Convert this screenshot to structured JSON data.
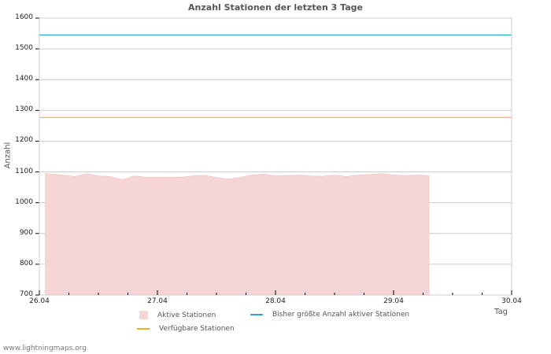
{
  "title": "Anzahl Stationen der letzten 3 Tage",
  "ylabel": "Anzahl",
  "xlabel": "Tag",
  "footer": "www.lightningmaps.org",
  "colors": {
    "active_fill": "#f5d5d5",
    "active_edge": "#f0c0c0",
    "max_line": "#2aaac8",
    "available_line": "#f0b020",
    "grid": "#cccccc",
    "axis": "#cccccc"
  },
  "legend": {
    "active": "Aktive Stationen",
    "max": "Bisher größte Anzahl aktiver Stationen",
    "available": "Verfügbare Stationen"
  },
  "yticks": [
    "1600",
    "1500",
    "1400",
    "1300",
    "1200",
    "1100",
    "1000",
    "900",
    "800",
    "700"
  ],
  "xticks": [
    "26.04",
    "27.04",
    "28.04",
    "29.04",
    "30.04"
  ],
  "chart_data": {
    "type": "area",
    "title": "Anzahl Stationen der letzten 3 Tage",
    "xlabel": "Tag",
    "ylabel": "Anzahl",
    "ylim": [
      700,
      1600
    ],
    "xlim": [
      "26.04",
      "30.04"
    ],
    "grid": true,
    "legend_position": "bottom",
    "x_tick_labels": [
      "26.04",
      "27.04",
      "28.04",
      "29.04",
      "30.04"
    ],
    "y_tick_labels": [
      700,
      800,
      900,
      1000,
      1100,
      1200,
      1300,
      1400,
      1500,
      1600
    ],
    "series": [
      {
        "name": "Aktive Stationen",
        "kind": "area",
        "x_days": [
          0.05,
          0.2,
          0.3,
          0.4,
          0.5,
          0.6,
          0.7,
          0.8,
          0.9,
          1.0,
          1.1,
          1.2,
          1.3,
          1.4,
          1.5,
          1.6,
          1.7,
          1.8,
          1.9,
          2.0,
          2.1,
          2.2,
          2.3,
          2.4,
          2.5,
          2.6,
          2.7,
          2.8,
          2.9,
          3.0,
          3.1,
          3.2,
          3.3
        ],
        "values": [
          1095,
          1090,
          1085,
          1095,
          1087,
          1085,
          1075,
          1087,
          1083,
          1083,
          1083,
          1083,
          1087,
          1089,
          1082,
          1077,
          1082,
          1090,
          1093,
          1088,
          1088,
          1090,
          1087,
          1086,
          1090,
          1085,
          1090,
          1092,
          1095,
          1090,
          1088,
          1090,
          1088
        ]
      },
      {
        "name": "Bisher größte Anzahl aktiver Stationen",
        "kind": "line",
        "value": 1545
      },
      {
        "name": "Verfügbare Stationen",
        "kind": "line",
        "value": 1277
      }
    ]
  }
}
